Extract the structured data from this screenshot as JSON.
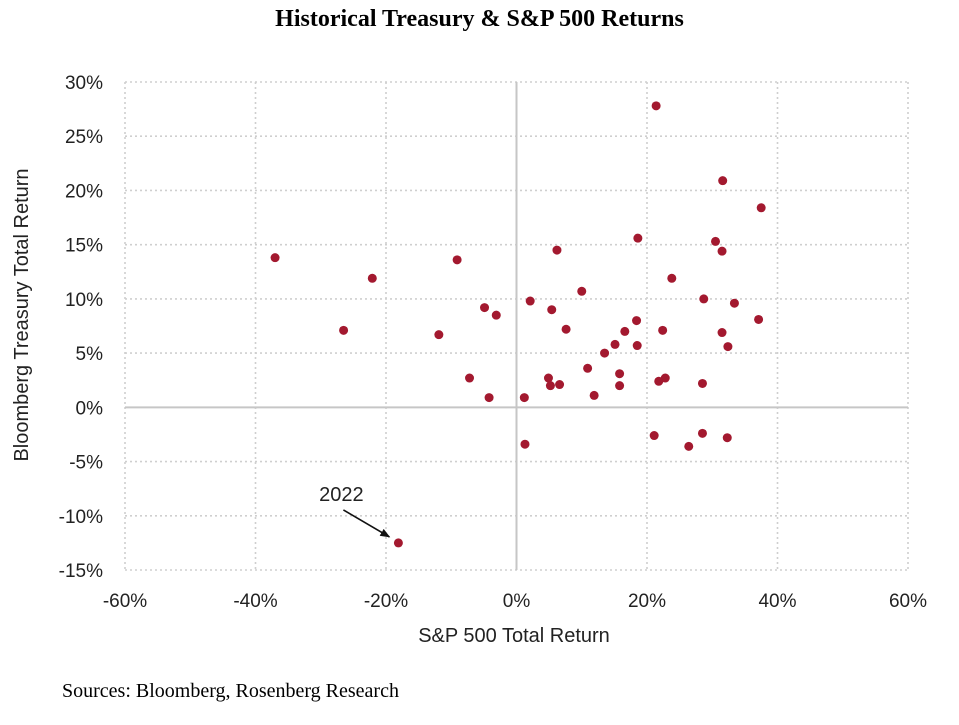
{
  "chart_data": {
    "type": "scatter",
    "title": "Historical Treasury & S&P 500 Returns",
    "xlabel": "S&P 500 Total Return",
    "ylabel": "Bloomberg Treasury Total Return",
    "xlim": [
      -60,
      60
    ],
    "ylim": [
      -15,
      30
    ],
    "x_ticks": [
      -60,
      -40,
      -20,
      0,
      20,
      40,
      60
    ],
    "y_ticks": [
      -15,
      -10,
      -5,
      0,
      5,
      10,
      15,
      20,
      25,
      30
    ],
    "x_tick_labels": [
      "-60%",
      "-40%",
      "-20%",
      "0%",
      "20%",
      "40%",
      "60%"
    ],
    "y_tick_labels": [
      "-15%",
      "-10%",
      "-5%",
      "0%",
      "5%",
      "10%",
      "15%",
      "20%",
      "25%",
      "30%"
    ],
    "grid": true,
    "point_color": "#a3192f",
    "points": [
      {
        "x": 21.4,
        "y": 27.8
      },
      {
        "x": 31.6,
        "y": 20.9
      },
      {
        "x": 37.5,
        "y": 18.4
      },
      {
        "x": 18.6,
        "y": 15.6
      },
      {
        "x": 30.5,
        "y": 15.3
      },
      {
        "x": 6.2,
        "y": 14.5
      },
      {
        "x": 31.5,
        "y": 14.4
      },
      {
        "x": -37.0,
        "y": 13.8
      },
      {
        "x": -9.1,
        "y": 13.6
      },
      {
        "x": -22.1,
        "y": 11.9
      },
      {
        "x": 23.8,
        "y": 11.9
      },
      {
        "x": 10.0,
        "y": 10.7
      },
      {
        "x": 2.1,
        "y": 9.8
      },
      {
        "x": 28.7,
        "y": 10.0
      },
      {
        "x": 33.4,
        "y": 9.6
      },
      {
        "x": -4.9,
        "y": 9.2
      },
      {
        "x": 5.4,
        "y": 9.0
      },
      {
        "x": -3.1,
        "y": 8.5
      },
      {
        "x": 18.4,
        "y": 8.0
      },
      {
        "x": 37.1,
        "y": 8.1
      },
      {
        "x": -26.5,
        "y": 7.1
      },
      {
        "x": 7.6,
        "y": 7.2
      },
      {
        "x": 16.6,
        "y": 7.0
      },
      {
        "x": 22.4,
        "y": 7.1
      },
      {
        "x": 31.5,
        "y": 6.9
      },
      {
        "x": -11.9,
        "y": 6.7
      },
      {
        "x": 15.1,
        "y": 5.8
      },
      {
        "x": 18.5,
        "y": 5.7
      },
      {
        "x": 32.4,
        "y": 5.6
      },
      {
        "x": 13.5,
        "y": 5.0
      },
      {
        "x": 10.9,
        "y": 3.6
      },
      {
        "x": 15.8,
        "y": 3.1
      },
      {
        "x": -7.2,
        "y": 2.7
      },
      {
        "x": 4.9,
        "y": 2.7
      },
      {
        "x": 22.8,
        "y": 2.7
      },
      {
        "x": 21.8,
        "y": 2.4
      },
      {
        "x": 5.2,
        "y": 2.0
      },
      {
        "x": 6.6,
        "y": 2.1
      },
      {
        "x": 15.8,
        "y": 2.0
      },
      {
        "x": 28.5,
        "y": 2.2
      },
      {
        "x": -4.2,
        "y": 0.9
      },
      {
        "x": 1.2,
        "y": 0.9
      },
      {
        "x": 11.9,
        "y": 1.1
      },
      {
        "x": 21.1,
        "y": -2.6
      },
      {
        "x": 28.5,
        "y": -2.4
      },
      {
        "x": 32.3,
        "y": -2.8
      },
      {
        "x": 26.4,
        "y": -3.6
      },
      {
        "x": 1.3,
        "y": -3.4
      },
      {
        "x": -18.1,
        "y": -12.5
      }
    ],
    "annotations": [
      {
        "text": "2022",
        "x": -18.1,
        "y": -12.5
      }
    ]
  },
  "source": "Sources: Bloomberg, Rosenberg Research"
}
